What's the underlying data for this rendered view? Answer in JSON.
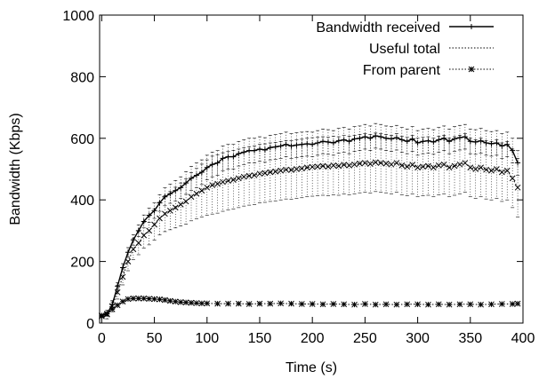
{
  "chart_data": {
    "type": "line",
    "title": "",
    "xlabel": "Time (s)",
    "ylabel": "Bandwidth (Kbps)",
    "xlim": [
      -2,
      400
    ],
    "ylim": [
      0,
      1000
    ],
    "xticks": [
      0,
      50,
      100,
      150,
      200,
      250,
      300,
      350,
      400
    ],
    "yticks": [
      0,
      200,
      400,
      600,
      800,
      1000
    ],
    "grid": false,
    "legend_position": "top-right",
    "series": [
      {
        "name": "Bandwidth received",
        "style": "solid",
        "marker": "plus",
        "color": "#000000",
        "points": [
          [
            0,
            25
          ],
          [
            5,
            30
          ],
          [
            10,
            60
          ],
          [
            15,
            120
          ],
          [
            20,
            180
          ],
          [
            25,
            230
          ],
          [
            30,
            270
          ],
          [
            35,
            300
          ],
          [
            40,
            330
          ],
          [
            45,
            350
          ],
          [
            50,
            365
          ],
          [
            55,
            390
          ],
          [
            60,
            410
          ],
          [
            65,
            420
          ],
          [
            70,
            430
          ],
          [
            75,
            440
          ],
          [
            80,
            455
          ],
          [
            85,
            470
          ],
          [
            90,
            480
          ],
          [
            95,
            490
          ],
          [
            100,
            505
          ],
          [
            105,
            515
          ],
          [
            110,
            520
          ],
          [
            115,
            535
          ],
          [
            120,
            540
          ],
          [
            125,
            540
          ],
          [
            130,
            550
          ],
          [
            135,
            555
          ],
          [
            140,
            560
          ],
          [
            145,
            560
          ],
          [
            150,
            565
          ],
          [
            155,
            562
          ],
          [
            160,
            570
          ],
          [
            165,
            572
          ],
          [
            170,
            575
          ],
          [
            175,
            580
          ],
          [
            180,
            575
          ],
          [
            185,
            578
          ],
          [
            190,
            580
          ],
          [
            195,
            582
          ],
          [
            200,
            580
          ],
          [
            205,
            585
          ],
          [
            210,
            590
          ],
          [
            215,
            588
          ],
          [
            220,
            585
          ],
          [
            225,
            592
          ],
          [
            230,
            595
          ],
          [
            235,
            590
          ],
          [
            240,
            598
          ],
          [
            245,
            600
          ],
          [
            250,
            605
          ],
          [
            255,
            600
          ],
          [
            260,
            608
          ],
          [
            265,
            605
          ],
          [
            270,
            600
          ],
          [
            275,
            598
          ],
          [
            280,
            602
          ],
          [
            285,
            595
          ],
          [
            290,
            590
          ],
          [
            295,
            598
          ],
          [
            300,
            585
          ],
          [
            305,
            590
          ],
          [
            310,
            592
          ],
          [
            315,
            588
          ],
          [
            320,
            595
          ],
          [
            325,
            600
          ],
          [
            330,
            590
          ],
          [
            335,
            598
          ],
          [
            340,
            602
          ],
          [
            345,
            605
          ],
          [
            350,
            590
          ],
          [
            355,
            588
          ],
          [
            360,
            592
          ],
          [
            365,
            585
          ],
          [
            370,
            582
          ],
          [
            375,
            585
          ],
          [
            380,
            575
          ],
          [
            385,
            580
          ],
          [
            390,
            560
          ],
          [
            395,
            520
          ]
        ]
      },
      {
        "name": "Useful total",
        "style": "dotted",
        "marker": "cross",
        "color": "#000000",
        "points": [
          [
            0,
            25
          ],
          [
            5,
            28
          ],
          [
            10,
            55
          ],
          [
            15,
            100
          ],
          [
            20,
            150
          ],
          [
            25,
            200
          ],
          [
            30,
            240
          ],
          [
            35,
            260
          ],
          [
            40,
            285
          ],
          [
            45,
            300
          ],
          [
            50,
            320
          ],
          [
            55,
            340
          ],
          [
            60,
            355
          ],
          [
            65,
            365
          ],
          [
            70,
            375
          ],
          [
            75,
            385
          ],
          [
            80,
            395
          ],
          [
            85,
            410
          ],
          [
            90,
            420
          ],
          [
            95,
            430
          ],
          [
            100,
            440
          ],
          [
            105,
            448
          ],
          [
            110,
            452
          ],
          [
            115,
            458
          ],
          [
            120,
            462
          ],
          [
            125,
            465
          ],
          [
            130,
            470
          ],
          [
            135,
            475
          ],
          [
            140,
            478
          ],
          [
            145,
            480
          ],
          [
            150,
            485
          ],
          [
            155,
            487
          ],
          [
            160,
            490
          ],
          [
            165,
            492
          ],
          [
            170,
            495
          ],
          [
            175,
            498
          ],
          [
            180,
            497
          ],
          [
            185,
            500
          ],
          [
            190,
            502
          ],
          [
            195,
            505
          ],
          [
            200,
            507
          ],
          [
            205,
            508
          ],
          [
            210,
            510
          ],
          [
            215,
            508
          ],
          [
            220,
            512
          ],
          [
            225,
            510
          ],
          [
            230,
            514
          ],
          [
            235,
            512
          ],
          [
            240,
            515
          ],
          [
            245,
            518
          ],
          [
            250,
            520
          ],
          [
            255,
            517
          ],
          [
            260,
            522
          ],
          [
            265,
            520
          ],
          [
            270,
            518
          ],
          [
            275,
            515
          ],
          [
            280,
            520
          ],
          [
            285,
            512
          ],
          [
            290,
            508
          ],
          [
            295,
            514
          ],
          [
            300,
            505
          ],
          [
            305,
            508
          ],
          [
            310,
            510
          ],
          [
            315,
            505
          ],
          [
            320,
            512
          ],
          [
            325,
            515
          ],
          [
            330,
            505
          ],
          [
            335,
            510
          ],
          [
            340,
            515
          ],
          [
            345,
            520
          ],
          [
            350,
            505
          ],
          [
            355,
            500
          ],
          [
            360,
            505
          ],
          [
            365,
            498
          ],
          [
            370,
            495
          ],
          [
            375,
            500
          ],
          [
            380,
            490
          ],
          [
            385,
            495
          ],
          [
            390,
            470
          ],
          [
            395,
            440
          ]
        ]
      },
      {
        "name": "From parent",
        "style": "dotted",
        "marker": "star",
        "color": "#000000",
        "points": [
          [
            0,
            22
          ],
          [
            5,
            30
          ],
          [
            10,
            45
          ],
          [
            15,
            58
          ],
          [
            20,
            70
          ],
          [
            25,
            78
          ],
          [
            30,
            80
          ],
          [
            35,
            80
          ],
          [
            40,
            80
          ],
          [
            45,
            79
          ],
          [
            50,
            78
          ],
          [
            55,
            77
          ],
          [
            60,
            75
          ],
          [
            65,
            72
          ],
          [
            70,
            70
          ],
          [
            75,
            68
          ],
          [
            80,
            67
          ],
          [
            85,
            66
          ],
          [
            90,
            65
          ],
          [
            95,
            64
          ],
          [
            100,
            64
          ],
          [
            110,
            63
          ],
          [
            120,
            63
          ],
          [
            130,
            63
          ],
          [
            140,
            62
          ],
          [
            150,
            63
          ],
          [
            160,
            63
          ],
          [
            170,
            64
          ],
          [
            180,
            63
          ],
          [
            190,
            62
          ],
          [
            200,
            62
          ],
          [
            210,
            61
          ],
          [
            220,
            62
          ],
          [
            230,
            61
          ],
          [
            240,
            60
          ],
          [
            250,
            62
          ],
          [
            260,
            60
          ],
          [
            270,
            61
          ],
          [
            280,
            60
          ],
          [
            290,
            61
          ],
          [
            300,
            61
          ],
          [
            310,
            60
          ],
          [
            320,
            61
          ],
          [
            330,
            60
          ],
          [
            340,
            61
          ],
          [
            350,
            61
          ],
          [
            360,
            60
          ],
          [
            370,
            61
          ],
          [
            380,
            62
          ],
          [
            390,
            62
          ],
          [
            395,
            63
          ]
        ]
      }
    ]
  }
}
